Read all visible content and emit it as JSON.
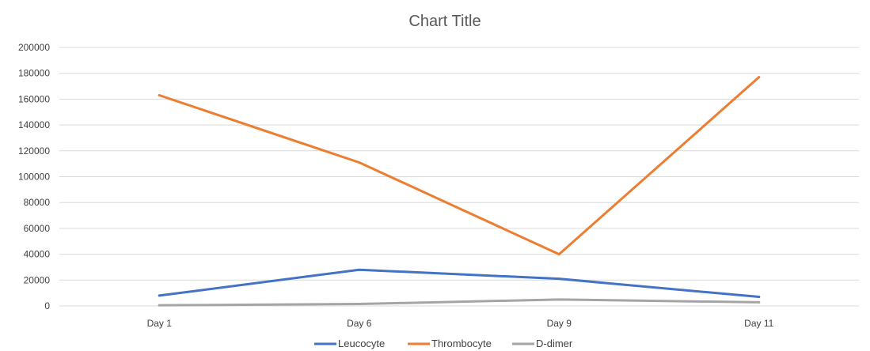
{
  "chart_data": {
    "type": "line",
    "title": "Chart Title",
    "xlabel": "",
    "ylabel": "",
    "categories": [
      "Day 1",
      "Day 6",
      "Day 9",
      "Day 11"
    ],
    "ylim": [
      0,
      200000
    ],
    "yticks": [
      0,
      20000,
      40000,
      60000,
      80000,
      100000,
      120000,
      140000,
      160000,
      180000,
      200000
    ],
    "grid": true,
    "legend_position": "bottom",
    "series": [
      {
        "name": "Leucocyte",
        "color": "#4472C4",
        "values": [
          8000,
          28000,
          21000,
          7000
        ]
      },
      {
        "name": "Thrombocyte",
        "color": "#ED7D31",
        "values": [
          163000,
          111000,
          40000,
          177000
        ]
      },
      {
        "name": "D-dimer",
        "color": "#A5A5A5",
        "values": [
          500,
          1500,
          5000,
          2800
        ]
      }
    ]
  }
}
